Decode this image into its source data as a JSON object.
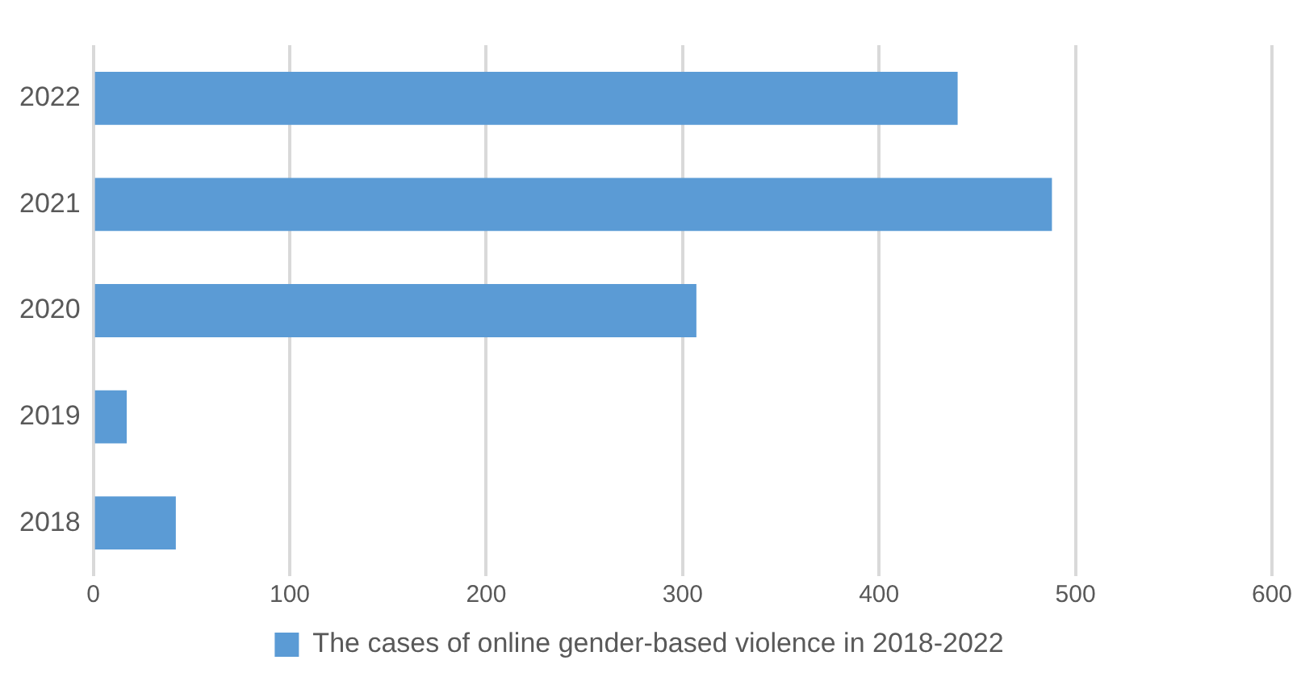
{
  "chart_data": {
    "type": "bar",
    "orientation": "horizontal",
    "categories": [
      "2022",
      "2021",
      "2020",
      "2019",
      "2018"
    ],
    "series": [
      {
        "name": "The cases of online gender-based violence in 2018-2022",
        "color": "#5b9bd5",
        "values": [
          440,
          488,
          307,
          17,
          42
        ]
      }
    ],
    "xlim": [
      0,
      600
    ],
    "xticks": [
      0,
      100,
      200,
      300,
      400,
      500,
      600
    ],
    "grid": "x",
    "legend": "bottom"
  }
}
